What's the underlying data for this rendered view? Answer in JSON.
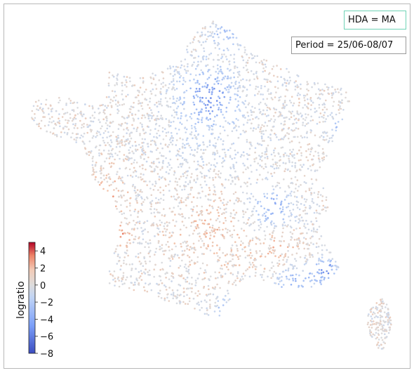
{
  "chart_data": {
    "type": "scatter",
    "title": "",
    "description_of_marks": "",
    "legend_labels": [
      "HDA = MA",
      "Period = 25/06-08/07"
    ],
    "colorbar": {
      "label": "logratio",
      "ticks": [
        4,
        2,
        0,
        -2,
        -4,
        -6,
        -8
      ],
      "tick_labels": [
        "4",
        "2",
        "0",
        "−2",
        "−4",
        "−6",
        "−8"
      ],
      "vmin": -8,
      "vmax": 5,
      "colormap": "coolwarm",
      "colors": {
        "min": "#3b4cc0",
        "mid": "#dddddd",
        "max": "#b40426"
      }
    },
    "regions": [
      {
        "name": "mainland",
        "typical_logratio": 0
      },
      {
        "name": "corsica",
        "typical_logratio": 0.5
      }
    ]
  },
  "legend": {
    "hda": "HDA = MA",
    "period": "Period = 25/06-08/07"
  }
}
